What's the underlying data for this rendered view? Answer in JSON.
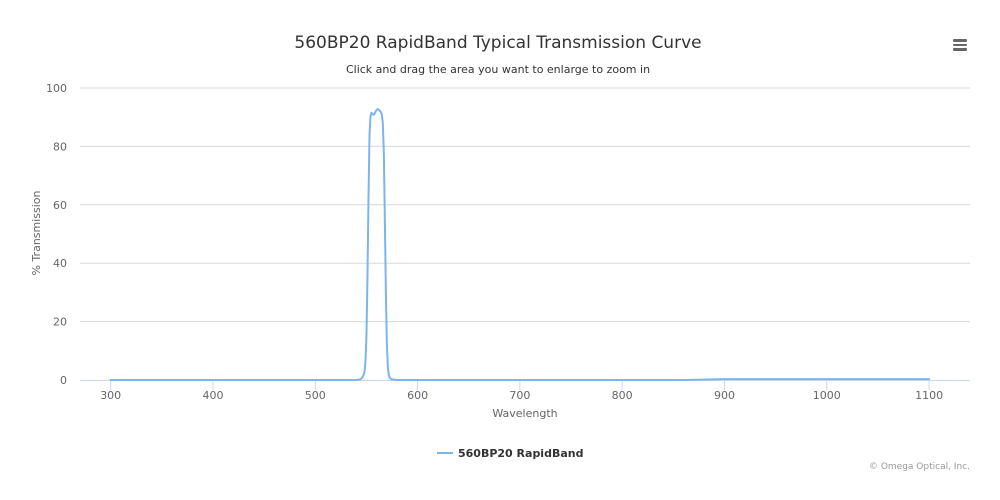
{
  "chart_data": {
    "type": "line",
    "title": "560BP20 RapidBand Typical Transmission Curve",
    "subtitle": "Click and drag the area you want to enlarge to zoom in",
    "xlabel": "Wavelength",
    "ylabel": "% Transmission",
    "xlim": [
      270,
      1140
    ],
    "ylim": [
      0,
      100
    ],
    "x_ticks": [
      300,
      400,
      500,
      600,
      700,
      800,
      900,
      1000,
      1100
    ],
    "y_ticks": [
      0,
      20,
      40,
      60,
      80,
      100
    ],
    "grid": true,
    "legend_position": "bottom-center",
    "colors": {
      "series": "#7cb5ec",
      "grid": "#d8d8d8",
      "axis_text": "#666666",
      "title": "#333333"
    },
    "series": [
      {
        "name": "560BP20 RapidBand",
        "x": [
          300,
          540,
          544,
          546,
          548,
          549,
          550,
          551,
          552,
          553,
          554,
          555,
          556,
          557,
          558,
          559,
          560,
          561,
          562,
          563,
          564,
          565,
          566,
          567,
          568,
          569,
          570,
          571,
          572,
          573,
          575,
          580,
          600,
          860,
          900,
          1000,
          1100
        ],
        "y": [
          0,
          0,
          0.2,
          0.8,
          2.5,
          6,
          15,
          35,
          62,
          84,
          90.5,
          91.5,
          91,
          90.8,
          91.2,
          92,
          92.5,
          92.8,
          92.6,
          92.2,
          91.8,
          91,
          88,
          78,
          55,
          30,
          12,
          4,
          1.5,
          0.6,
          0.2,
          0,
          0,
          0,
          0.3,
          0.3,
          0.3
        ]
      }
    ]
  },
  "credit": "© Omega Optical, Inc.",
  "menu_icon": "hamburger-menu-icon"
}
